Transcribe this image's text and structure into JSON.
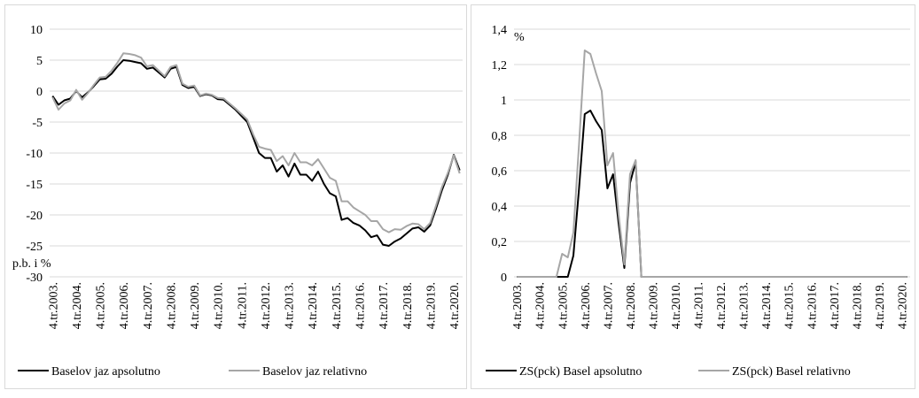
{
  "chart_data": [
    {
      "type": "line",
      "annotation": "p.b. i %",
      "categories": [
        "4.tr.2003.",
        null,
        null,
        null,
        "4.tr.2004.",
        null,
        null,
        null,
        "4.tr.2005.",
        null,
        null,
        null,
        "4.tr.2006.",
        null,
        null,
        null,
        "4.tr.2007.",
        null,
        null,
        null,
        "4.tr.2008.",
        null,
        null,
        null,
        "4.tr.2009.",
        null,
        null,
        null,
        "4.tr.2010.",
        null,
        null,
        null,
        "4.tr.2011.",
        null,
        null,
        null,
        "4.tr.2012.",
        null,
        null,
        null,
        "4.tr.2013.",
        null,
        null,
        null,
        "4.tr.2014.",
        null,
        null,
        null,
        "4.tr.2015.",
        null,
        null,
        null,
        "4.tr.2016.",
        null,
        null,
        null,
        "4.tr.2017.",
        null,
        null,
        null,
        "4.tr.2018.",
        null,
        null,
        null,
        "4.tr.2019.",
        null,
        null,
        null,
        "4.tr.2020.",
        null
      ],
      "series": [
        {
          "name": "Baselov jaz apsolutno",
          "color": "#000000",
          "values": [
            -0.8,
            -2.2,
            -1.5,
            -1.2,
            0,
            -1,
            -0.2,
            0.8,
            1.9,
            2,
            2.8,
            4,
            5,
            4.9,
            4.7,
            4.5,
            3.6,
            3.8,
            3,
            2.2,
            3.6,
            3.9,
            1,
            0.5,
            0.7,
            -0.8,
            -0.5,
            -0.7,
            -1.3,
            -1.4,
            -2.2,
            -3,
            -4,
            -5,
            -7.5,
            -10,
            -10.8,
            -10.8,
            -13,
            -12,
            -13.8,
            -11.7,
            -13.5,
            -13.5,
            -14.5,
            -13,
            -15,
            -16.5,
            -17,
            -20.8,
            -20.5,
            -21.3,
            -21.7,
            -22.5,
            -23.6,
            -23.3,
            -24.8,
            -25,
            -24.3,
            -23.8,
            -23,
            -22.2,
            -22,
            -22.7,
            -21.7,
            -19,
            -16,
            -13.5,
            -10.3,
            -12.8
          ]
        },
        {
          "name": "Baselov jaz relativno",
          "color": "#a6a6a6",
          "values": [
            -1,
            -3,
            -2,
            -1.5,
            0.2,
            -1.4,
            -0.3,
            1,
            2.2,
            2.3,
            3.3,
            4.6,
            6.1,
            6,
            5.8,
            5.4,
            4,
            4.2,
            3.3,
            2.4,
            3.9,
            4.2,
            1.2,
            0.7,
            0.9,
            -0.7,
            -0.4,
            -0.6,
            -1.1,
            -1.2,
            -2,
            -2.8,
            -3.7,
            -4.6,
            -7,
            -9,
            -9.3,
            -9.5,
            -11.3,
            -10.5,
            -12,
            -10,
            -11.5,
            -11.5,
            -12,
            -11,
            -12.5,
            -14,
            -14.5,
            -17.8,
            -17.8,
            -18.8,
            -19.4,
            -20,
            -21,
            -21,
            -22.3,
            -22.8,
            -22.3,
            -22.4,
            -21.8,
            -21.4,
            -21.5,
            -22.3,
            -21.3,
            -18.5,
            -15.5,
            -13.2,
            -10.4,
            -13.3
          ]
        }
      ],
      "ylim": [
        -30,
        10
      ],
      "yticks": [
        -30,
        -25,
        -20,
        -15,
        -10,
        -5,
        0,
        5,
        10
      ],
      "grid": true
    },
    {
      "type": "line",
      "annotation": "%",
      "categories": [
        "4.tr.2003.",
        null,
        null,
        null,
        "4.tr.2004.",
        null,
        null,
        null,
        "4.tr.2005.",
        null,
        null,
        null,
        "4.tr.2006.",
        null,
        null,
        null,
        "4.tr.2007.",
        null,
        null,
        null,
        "4.tr.2008.",
        null,
        null,
        null,
        "4.tr.2009.",
        null,
        null,
        null,
        "4.tr.2010.",
        null,
        null,
        null,
        "4.tr.2011.",
        null,
        null,
        null,
        "4.tr.2012.",
        null,
        null,
        null,
        "4.tr.2013.",
        null,
        null,
        null,
        "4.tr.2014.",
        null,
        null,
        null,
        "4.tr.2015.",
        null,
        null,
        null,
        "4.tr.2016.",
        null,
        null,
        null,
        "4.tr.2017.",
        null,
        null,
        null,
        "4.tr.2018.",
        null,
        null,
        null,
        "4.tr.2019.",
        null,
        null,
        null,
        "4.tr.2020.",
        null
      ],
      "series": [
        {
          "name": "ZS(pck) Basel apsolutno",
          "color": "#000000",
          "values": [
            0,
            0,
            0,
            0,
            0,
            0,
            0,
            0,
            0,
            0,
            0.12,
            0.5,
            0.92,
            0.94,
            0.88,
            0.83,
            0.5,
            0.58,
            0.3,
            0.05,
            0.53,
            0.65,
            0,
            0,
            0,
            0,
            0,
            0,
            0,
            0,
            0,
            0,
            0,
            0,
            0,
            0,
            0,
            0,
            0,
            0,
            0,
            0,
            0,
            0,
            0,
            0,
            0,
            0,
            0,
            0,
            0,
            0,
            0,
            0,
            0,
            0,
            0,
            0,
            0,
            0,
            0,
            0,
            0,
            0,
            0,
            0,
            0,
            0,
            0,
            0
          ]
        },
        {
          "name": "ZS(pck) Basel relativno",
          "color": "#a6a6a6",
          "values": [
            0,
            0,
            0,
            0,
            0,
            0,
            0,
            0,
            0.13,
            0.11,
            0.25,
            0.75,
            1.28,
            1.26,
            1.15,
            1.05,
            0.63,
            0.7,
            0.35,
            0.07,
            0.58,
            0.66,
            0,
            0,
            0,
            0,
            0,
            0,
            0,
            0,
            0,
            0,
            0,
            0,
            0,
            0,
            0,
            0,
            0,
            0,
            0,
            0,
            0,
            0,
            0,
            0,
            0,
            0,
            0,
            0,
            0,
            0,
            0,
            0,
            0,
            0,
            0,
            0,
            0,
            0,
            0,
            0,
            0,
            0,
            0,
            0,
            0,
            0,
            0,
            0
          ]
        }
      ],
      "ylim": [
        0,
        1.4
      ],
      "yticks": [
        0,
        {
          "value": 0.2,
          "label": "0,2"
        },
        {
          "value": 0.4,
          "label": "0,4"
        },
        {
          "value": 0.6,
          "label": "0,6"
        },
        {
          "value": 0.8,
          "label": "0,8"
        },
        1,
        {
          "value": 1.2,
          "label": "1,2"
        },
        {
          "value": 1.4,
          "label": "1,4"
        }
      ],
      "grid": true
    }
  ]
}
